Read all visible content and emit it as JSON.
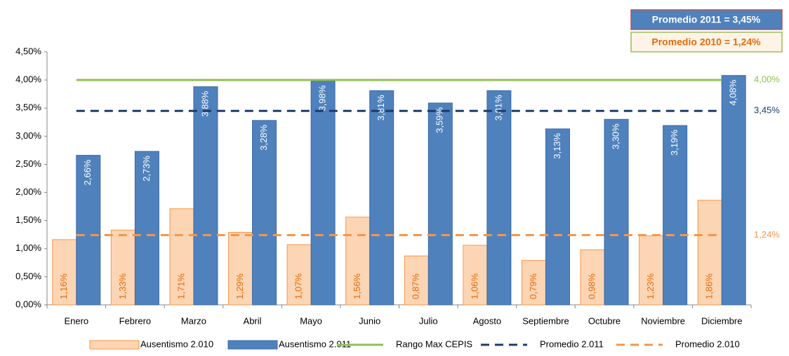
{
  "chart_data": {
    "type": "bar",
    "categories": [
      "Enero",
      "Febrero",
      "Marzo",
      "Abril",
      "Mayo",
      "Junio",
      "Julio",
      "Agosto",
      "Septiembre",
      "Octubre",
      "Noviembre",
      "Diciembre"
    ],
    "series": [
      {
        "name": "Ausentismo 2.010",
        "type": "bar",
        "color": "#fcd5b5",
        "border": "#f79646",
        "label_color": "#e46c0a",
        "values": [
          1.16,
          1.33,
          1.71,
          1.29,
          1.07,
          1.56,
          0.87,
          1.06,
          0.79,
          0.98,
          1.23,
          1.86
        ],
        "value_labels": [
          "1,16%",
          "1,33%",
          "1,71%",
          "1,29%",
          "1,07%",
          "1,56%",
          "0,87%",
          "1,06%",
          "0,79%",
          "0,98%",
          "1,23%",
          "1,86%"
        ]
      },
      {
        "name": "Ausentismo 2.011",
        "type": "bar",
        "color": "#4f81bd",
        "border": "#3a6aa6",
        "label_color": "#ffffff",
        "values": [
          2.66,
          2.73,
          3.88,
          3.28,
          3.98,
          3.81,
          3.59,
          3.81,
          3.13,
          3.3,
          3.19,
          4.08
        ],
        "value_labels": [
          "2,66%",
          "2,73%",
          "3,88%",
          "3,28%",
          "3,98%",
          "3,81%",
          "3,59%",
          "3,81%",
          "3,13%",
          "3,30%",
          "3,19%",
          "4,08%"
        ]
      },
      {
        "name": "Rango Max CEPIS",
        "type": "line",
        "color": "#92c050",
        "dash": false,
        "end_label": "4,00%",
        "values": [
          4,
          4,
          4,
          4,
          4,
          4,
          4,
          4,
          4,
          4,
          4,
          4
        ]
      },
      {
        "name": "Promedio 2.011",
        "type": "line",
        "color": "#1f3b6e",
        "dash": true,
        "end_label": "3,45%",
        "values": [
          3.45,
          3.45,
          3.45,
          3.45,
          3.45,
          3.45,
          3.45,
          3.45,
          3.45,
          3.45,
          3.45,
          3.45
        ]
      },
      {
        "name": "Promedio 2.010",
        "type": "line",
        "color": "#f79646",
        "dash": true,
        "end_label": "1,24%",
        "values": [
          1.24,
          1.24,
          1.24,
          1.24,
          1.24,
          1.24,
          1.24,
          1.24,
          1.24,
          1.24,
          1.24,
          1.24
        ]
      }
    ],
    "ylim": [
      0,
      4.5
    ],
    "yticks": [
      {
        "value": 0,
        "label": "0,00%"
      },
      {
        "value": 0.5,
        "label": "0,50%"
      },
      {
        "value": 1,
        "label": "1,00%"
      },
      {
        "value": 1.5,
        "label": "1,50%"
      },
      {
        "value": 2,
        "label": "2,00%"
      },
      {
        "value": 2.5,
        "label": "2,50%"
      },
      {
        "value": 3,
        "label": "3,00%"
      },
      {
        "value": 3.5,
        "label": "3,50%"
      },
      {
        "value": 4,
        "label": "4,00%"
      },
      {
        "value": 4.5,
        "label": "4,50%"
      }
    ],
    "annotations": [
      "Promedio 2011 = 3,45%",
      "Promedio 2010 = 1,24%"
    ],
    "legend": "bottom"
  }
}
